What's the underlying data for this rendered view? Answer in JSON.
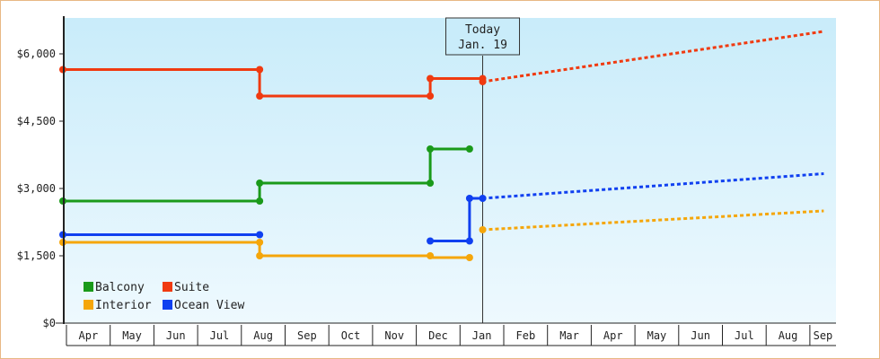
{
  "chart_data": {
    "type": "line",
    "style": "step",
    "x_labels": [
      "Apr",
      "May",
      "Jun",
      "Jul",
      "Aug",
      "Sep",
      "Oct",
      "Nov",
      "Dec",
      "Jan",
      "Feb",
      "Mar",
      "Apr",
      "May",
      "Jun",
      "Jul",
      "Aug",
      "Sep"
    ],
    "y_ticks": [
      "$0",
      "$1,500",
      "$3,000",
      "$4,500",
      "$6,000"
    ],
    "ylim": [
      0,
      6800
    ],
    "x_unit": "months since start of Apr",
    "x_range": [
      0,
      17.4
    ],
    "today": {
      "label": "Today",
      "date": "Jan. 19",
      "x": 9.6
    },
    "grid": false,
    "legend_position": "bottom-left",
    "series": [
      {
        "name": "Balcony",
        "color": "#1a9a1a",
        "points": [
          [
            0,
            2720
          ],
          [
            4.5,
            2720
          ],
          [
            4.5,
            3120
          ],
          [
            8.4,
            3120
          ],
          [
            8.4,
            3880
          ],
          [
            9.3,
            3880
          ]
        ],
        "markers": [
          [
            0,
            2720
          ],
          [
            4.5,
            2720
          ],
          [
            4.5,
            3120
          ],
          [
            8.4,
            3120
          ],
          [
            8.4,
            3880
          ],
          [
            9.3,
            3880
          ]
        ],
        "projection": []
      },
      {
        "name": "Suite",
        "color": "#f03a10",
        "points": [
          [
            0,
            5650
          ],
          [
            4.5,
            5650
          ],
          [
            4.5,
            5060
          ],
          [
            8.4,
            5060
          ],
          [
            8.4,
            5450
          ],
          [
            9.6,
            5450
          ],
          [
            9.6,
            5380
          ]
        ],
        "markers": [
          [
            0,
            5650
          ],
          [
            4.5,
            5650
          ],
          [
            4.5,
            5060
          ],
          [
            8.4,
            5060
          ],
          [
            8.4,
            5450
          ],
          [
            9.6,
            5450
          ],
          [
            9.6,
            5380
          ]
        ],
        "projection": [
          [
            9.6,
            5380
          ],
          [
            17.4,
            6500
          ]
        ]
      },
      {
        "name": "Interior",
        "color": "#f5a60a",
        "points": [
          [
            0,
            1800
          ],
          [
            4.5,
            1800
          ],
          [
            4.5,
            1500
          ],
          [
            8.4,
            1500
          ],
          [
            8.4,
            1460
          ],
          [
            9.3,
            1460
          ]
        ],
        "markers": [
          [
            0,
            1800
          ],
          [
            4.5,
            1800
          ],
          [
            4.5,
            1500
          ],
          [
            8.4,
            1500
          ],
          [
            9.3,
            1460
          ],
          [
            9.6,
            2080
          ]
        ],
        "projection": [
          [
            9.6,
            2080
          ],
          [
            17.4,
            2500
          ]
        ]
      },
      {
        "name": "Ocean View",
        "color": "#1040f0",
        "points": [
          [
            0,
            1970
          ],
          [
            4.5,
            1970
          ]
        ],
        "points2": [
          [
            8.4,
            1830
          ],
          [
            9.3,
            1830
          ],
          [
            9.3,
            2780
          ],
          [
            9.6,
            2780
          ]
        ],
        "markers": [
          [
            0,
            1970
          ],
          [
            4.5,
            1970
          ],
          [
            8.4,
            1830
          ],
          [
            9.3,
            1830
          ],
          [
            9.3,
            2780
          ],
          [
            9.6,
            2780
          ]
        ],
        "projection": [
          [
            9.6,
            2780
          ],
          [
            17.4,
            3330
          ]
        ]
      }
    ]
  }
}
